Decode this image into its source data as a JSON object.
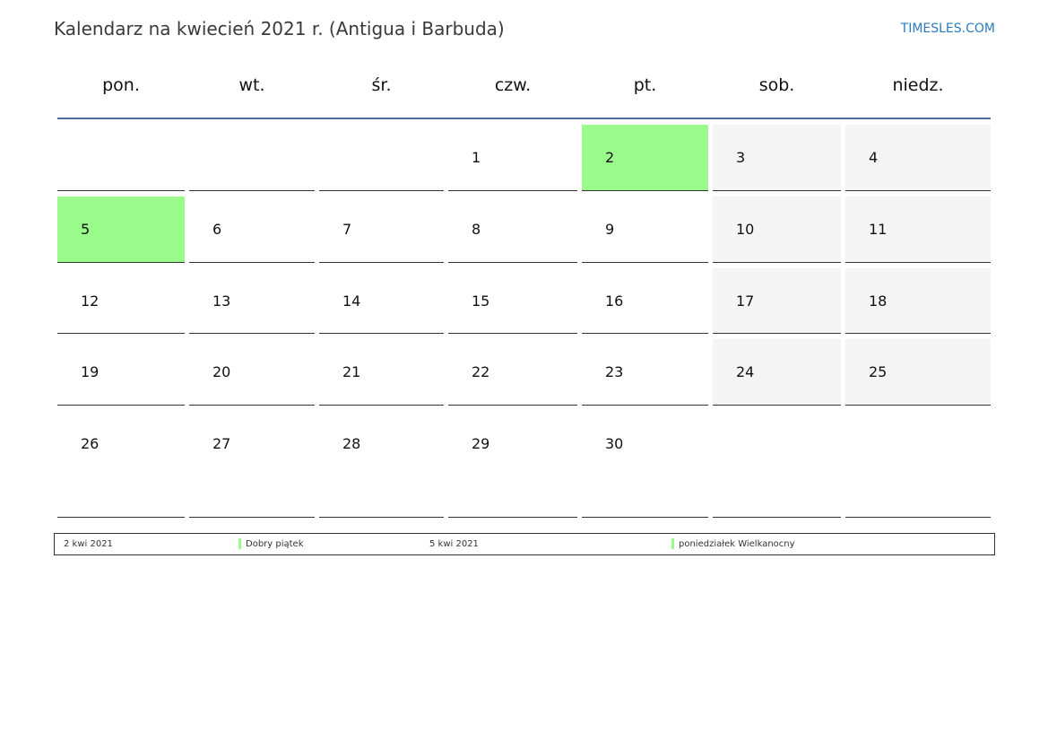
{
  "header": {
    "title": "Kalendarz na kwiecień 2021 r. (Antigua i Barbuda)",
    "brand": "TIMESLES.COM"
  },
  "weekdays": [
    "pon.",
    "wt.",
    "śr.",
    "czw.",
    "pt.",
    "sob.",
    "niedz."
  ],
  "colors": {
    "holiday": "#9afc8a",
    "weekend": "#f4f4f4",
    "rule": "#4e6e9c"
  },
  "weeks": [
    [
      "",
      "",
      "",
      "1",
      "2",
      "3",
      "4"
    ],
    [
      "5",
      "6",
      "7",
      "8",
      "9",
      "10",
      "11"
    ],
    [
      "12",
      "13",
      "14",
      "15",
      "16",
      "17",
      "18"
    ],
    [
      "19",
      "20",
      "21",
      "22",
      "23",
      "24",
      "25"
    ],
    [
      "26",
      "27",
      "28",
      "29",
      "30",
      "",
      ""
    ]
  ],
  "holidays": [
    "2",
    "5"
  ],
  "legend": [
    {
      "date": "2 kwi 2021",
      "name": "Dobry piątek"
    },
    {
      "date": "5 kwi 2021",
      "name": "poniedziałek Wielkanocny"
    }
  ]
}
